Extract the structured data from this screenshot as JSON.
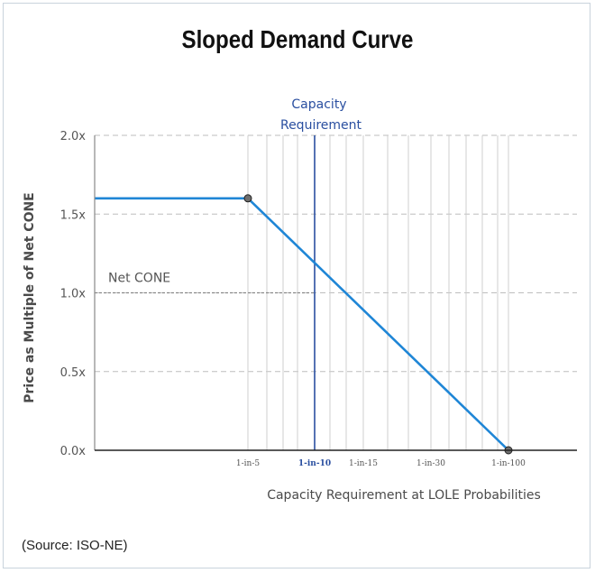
{
  "chart_data": {
    "type": "line",
    "title": "Sloped Demand Curve",
    "xlabel": "Capacity Requirement at LOLE Probabilities",
    "ylabel": "Price as Multiple of Net CONE",
    "ylim": [
      0,
      2.0
    ],
    "y_ticks": [
      {
        "value": 0.0,
        "label": "0.0x"
      },
      {
        "value": 0.5,
        "label": "0.5x"
      },
      {
        "value": 1.0,
        "label": "1.0x"
      },
      {
        "value": 1.5,
        "label": "1.5x"
      },
      {
        "value": 2.0,
        "label": "2.0x"
      }
    ],
    "x_ticks": [
      {
        "label": "1-in-5",
        "highlight": false
      },
      {
        "label": "1-in-10",
        "highlight": true
      },
      {
        "label": "1-in-15",
        "highlight": false
      },
      {
        "label": "1-in-30",
        "highlight": false
      },
      {
        "label": "1-in-100",
        "highlight": false
      }
    ],
    "series": [
      {
        "name": "Sloped Demand Curve",
        "color": "#1f86d6",
        "points": [
          {
            "x": "start",
            "y": 1.6
          },
          {
            "x": "1-in-5",
            "y": 1.6,
            "marker": true
          },
          {
            "x": "1-in-100",
            "y": 0.0,
            "marker": true
          }
        ]
      }
    ],
    "annotations": {
      "capacity_requirement": {
        "line1": "Capacity",
        "line2": "Requirement",
        "x": "1-in-10",
        "color": "#2a4fa0"
      },
      "net_cone": {
        "label": "Net CONE",
        "y": 1.0
      }
    },
    "grid": true
  },
  "source": "(Source: ISO-NE)"
}
